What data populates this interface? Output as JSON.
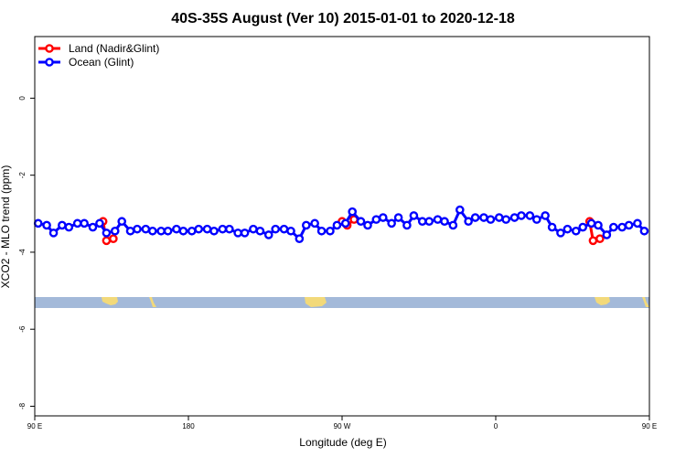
{
  "colors": {
    "land": "#ff0000",
    "ocean": "#0000ff",
    "map_band": "#a3b9d9",
    "landmass": "#f2d97a"
  },
  "chart_data": {
    "type": "line",
    "title": "40S-35S August (Ver 10)   2015-01-01 to 2020-12-18",
    "xlabel": "Longitude (deg E)",
    "ylabel": "XCO2 - MLO trend (ppm)",
    "xlim": [
      90,
      450
    ],
    "ylim": [
      -8.25,
      1.6
    ],
    "x_ticks": [
      {
        "value": 90,
        "label": "90 E"
      },
      {
        "value": 180,
        "label": "180"
      },
      {
        "value": 270,
        "label": "90 W"
      },
      {
        "value": 360,
        "label": "0"
      },
      {
        "value": 450,
        "label": "90 E"
      },
      {
        "value": 540,
        "label": "180"
      }
    ],
    "y_ticks": [
      {
        "value": 0,
        "label": "0"
      },
      {
        "value": -2,
        "label": "-2"
      },
      {
        "value": -4,
        "label": "-4"
      },
      {
        "value": -6,
        "label": "-6"
      },
      {
        "value": -8,
        "label": "-8"
      }
    ],
    "legend": {
      "position": "top-left"
    },
    "series": [
      {
        "name": "Land (Nadir&Glint)",
        "color": "#ff0000",
        "points": [
          [
            130,
            -3.2
          ],
          [
            132,
            -3.7
          ],
          [
            136,
            -3.65
          ],
          [
            270,
            -3.2
          ],
          [
            273,
            -3.3
          ],
          [
            277,
            -3.15
          ],
          [
            415,
            -3.2
          ],
          [
            417,
            -3.7
          ],
          [
            421,
            -3.65
          ]
        ]
      },
      {
        "name": "Ocean (Glint)",
        "color": "#0000ff",
        "points": [
          [
            92,
            -3.25
          ],
          [
            97,
            -3.3
          ],
          [
            101,
            -3.5
          ],
          [
            106,
            -3.3
          ],
          [
            110,
            -3.35
          ],
          [
            115,
            -3.25
          ],
          [
            119,
            -3.25
          ],
          [
            124,
            -3.35
          ],
          [
            128,
            -3.25
          ],
          [
            132,
            -3.5
          ],
          [
            137,
            -3.45
          ],
          [
            141,
            -3.2
          ],
          [
            146,
            -3.45
          ],
          [
            150,
            -3.4
          ],
          [
            155,
            -3.4
          ],
          [
            159,
            -3.45
          ],
          [
            164,
            -3.45
          ],
          [
            168,
            -3.45
          ],
          [
            173,
            -3.4
          ],
          [
            177,
            -3.45
          ],
          [
            182,
            -3.45
          ],
          [
            186,
            -3.4
          ],
          [
            191,
            -3.4
          ],
          [
            195,
            -3.45
          ],
          [
            200,
            -3.4
          ],
          [
            204,
            -3.4
          ],
          [
            209,
            -3.5
          ],
          [
            213,
            -3.5
          ],
          [
            218,
            -3.4
          ],
          [
            222,
            -3.45
          ],
          [
            227,
            -3.55
          ],
          [
            231,
            -3.4
          ],
          [
            236,
            -3.4
          ],
          [
            240,
            -3.45
          ],
          [
            245,
            -3.65
          ],
          [
            249,
            -3.3
          ],
          [
            254,
            -3.25
          ],
          [
            258,
            -3.45
          ],
          [
            263,
            -3.45
          ],
          [
            267,
            -3.3
          ],
          [
            272,
            -3.25
          ],
          [
            276,
            -2.95
          ],
          [
            281,
            -3.2
          ],
          [
            285,
            -3.3
          ],
          [
            290,
            -3.15
          ],
          [
            294,
            -3.1
          ],
          [
            299,
            -3.25
          ],
          [
            303,
            -3.1
          ],
          [
            308,
            -3.3
          ],
          [
            312,
            -3.05
          ],
          [
            317,
            -3.2
          ],
          [
            321,
            -3.2
          ],
          [
            326,
            -3.15
          ],
          [
            330,
            -3.2
          ],
          [
            335,
            -3.3
          ],
          [
            339,
            -2.9
          ],
          [
            344,
            -3.2
          ],
          [
            348,
            -3.1
          ],
          [
            353,
            -3.1
          ],
          [
            357,
            -3.15
          ],
          [
            362,
            -3.1
          ],
          [
            366,
            -3.15
          ],
          [
            371,
            -3.1
          ],
          [
            375,
            -3.05
          ],
          [
            380,
            -3.05
          ],
          [
            384,
            -3.15
          ],
          [
            389,
            -3.05
          ],
          [
            393,
            -3.35
          ],
          [
            398,
            -3.5
          ],
          [
            402,
            -3.4
          ],
          [
            407,
            -3.45
          ],
          [
            411,
            -3.35
          ],
          [
            416,
            -3.25
          ],
          [
            420,
            -3.3
          ],
          [
            425,
            -3.55
          ],
          [
            429,
            -3.35
          ],
          [
            434,
            -3.35
          ],
          [
            438,
            -3.3
          ],
          [
            443,
            -3.25
          ],
          [
            447,
            -3.45
          ]
        ]
      }
    ]
  }
}
